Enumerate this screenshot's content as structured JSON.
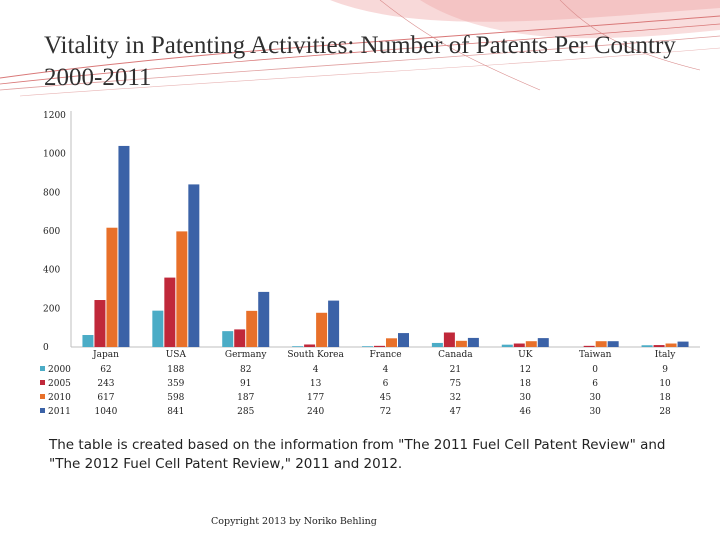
{
  "slide": {
    "title": "Vitality in Patenting Activities: Number of Patents Per Country 2000-2011",
    "caption": "The table is created based on the information from \"The 2011 Fuel Cell Patent  Review\" and \"The 2012 Fuel Cell Patent Review,\" 2011 and 2012.",
    "copyright": "Copyright 2013 by Noriko Behling"
  },
  "colors": {
    "series": [
      "#4bacc6",
      "#c0283a",
      "#e8702a",
      "#3b62a7"
    ],
    "axis": "#bfbfbf",
    "decoration": "#e06c6c"
  },
  "chart_data": {
    "type": "bar",
    "categories": [
      "Japan",
      "USA",
      "Germany",
      "South Korea",
      "France",
      "Canada",
      "UK",
      "Taiwan",
      "Italy"
    ],
    "series": [
      {
        "name": "2000",
        "values": [
          62,
          188,
          82,
          4,
          4,
          21,
          12,
          0,
          9
        ]
      },
      {
        "name": "2005",
        "values": [
          243,
          359,
          91,
          13,
          6,
          75,
          18,
          6,
          10
        ]
      },
      {
        "name": "2010",
        "values": [
          617,
          598,
          187,
          177,
          45,
          32,
          30,
          30,
          18
        ]
      },
      {
        "name": "2011",
        "values": [
          1040,
          841,
          285,
          240,
          72,
          47,
          46,
          30,
          28
        ]
      }
    ],
    "yticks": [
      0,
      200,
      400,
      600,
      800,
      1000,
      1200
    ],
    "ylim": [
      0,
      1200
    ],
    "grid": false,
    "legend": "data-table-left",
    "title": "",
    "xlabel": "",
    "ylabel": ""
  }
}
